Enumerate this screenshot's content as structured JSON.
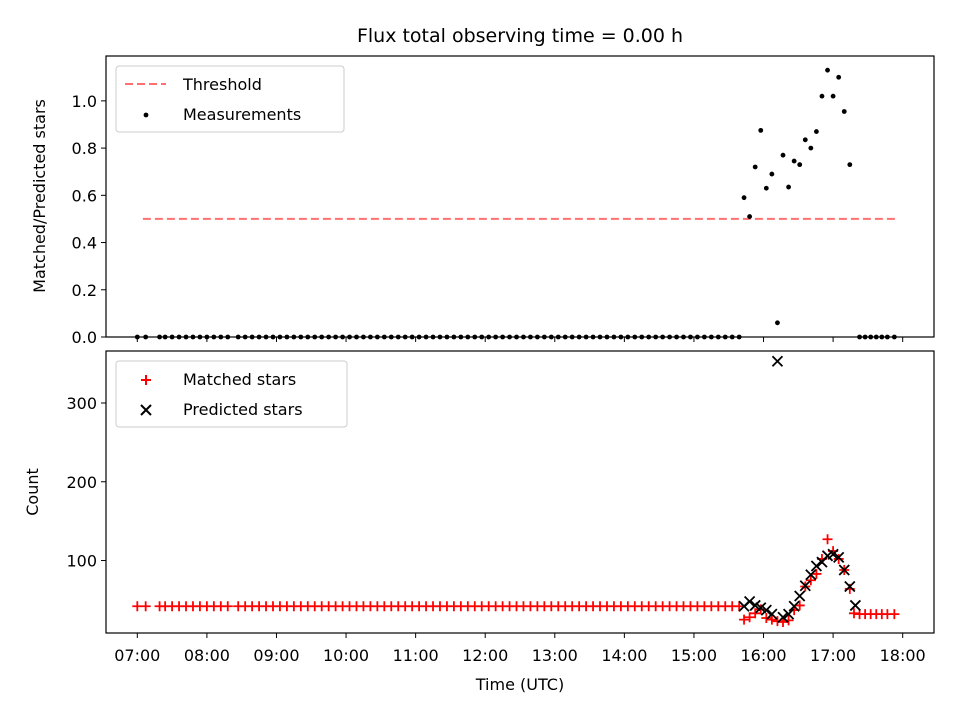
{
  "chart_data": [
    {
      "type": "scatter",
      "title": "Flux total observing time = 0.00 h",
      "xlabel": "",
      "ylabel": "Matched/Predicted stars",
      "xlim": [
        6.55,
        18.45
      ],
      "ylim": [
        0,
        1.19
      ],
      "yticks": [
        0.0,
        0.2,
        0.4,
        0.6,
        0.8,
        1.0
      ],
      "ytick_labels": [
        "0.0",
        "0.2",
        "0.4",
        "0.6",
        "0.8",
        "1.0"
      ],
      "legend_position": "top-left",
      "grid": false,
      "threshold": {
        "name": "Threshold",
        "value": 0.5,
        "x_range": [
          7.08,
          17.9
        ],
        "color": "#ff7070",
        "style": "dashed"
      },
      "series": [
        {
          "name": "Measurements",
          "color": "#000000",
          "marker": "dot",
          "points": [
            [
              7.0,
              0
            ],
            [
              7.12,
              0
            ],
            [
              7.32,
              0
            ],
            [
              7.4,
              0
            ],
            [
              7.5,
              0
            ],
            [
              7.6,
              0
            ],
            [
              7.7,
              0
            ],
            [
              7.8,
              0
            ],
            [
              7.9,
              0
            ],
            [
              8.0,
              0
            ],
            [
              8.1,
              0
            ],
            [
              8.2,
              0
            ],
            [
              8.3,
              0
            ],
            [
              8.45,
              0
            ],
            [
              8.55,
              0
            ],
            [
              8.65,
              0
            ],
            [
              8.75,
              0
            ],
            [
              8.85,
              0
            ],
            [
              8.95,
              0
            ],
            [
              9.05,
              0
            ],
            [
              9.15,
              0
            ],
            [
              9.25,
              0
            ],
            [
              9.35,
              0
            ],
            [
              9.45,
              0
            ],
            [
              9.55,
              0
            ],
            [
              9.65,
              0
            ],
            [
              9.75,
              0
            ],
            [
              9.85,
              0
            ],
            [
              9.95,
              0
            ],
            [
              10.05,
              0
            ],
            [
              10.15,
              0
            ],
            [
              10.25,
              0
            ],
            [
              10.35,
              0
            ],
            [
              10.45,
              0
            ],
            [
              10.55,
              0
            ],
            [
              10.65,
              0
            ],
            [
              10.75,
              0
            ],
            [
              10.85,
              0
            ],
            [
              10.95,
              0
            ],
            [
              11.05,
              0
            ],
            [
              11.15,
              0
            ],
            [
              11.25,
              0
            ],
            [
              11.35,
              0
            ],
            [
              11.45,
              0
            ],
            [
              11.55,
              0
            ],
            [
              11.65,
              0
            ],
            [
              11.75,
              0
            ],
            [
              11.85,
              0
            ],
            [
              11.95,
              0
            ],
            [
              12.05,
              0
            ],
            [
              12.15,
              0
            ],
            [
              12.25,
              0
            ],
            [
              12.35,
              0
            ],
            [
              12.45,
              0
            ],
            [
              12.55,
              0
            ],
            [
              12.65,
              0
            ],
            [
              12.75,
              0
            ],
            [
              12.85,
              0
            ],
            [
              12.95,
              0
            ],
            [
              13.05,
              0
            ],
            [
              13.15,
              0
            ],
            [
              13.25,
              0
            ],
            [
              13.35,
              0
            ],
            [
              13.45,
              0
            ],
            [
              13.55,
              0
            ],
            [
              13.65,
              0
            ],
            [
              13.75,
              0
            ],
            [
              13.85,
              0
            ],
            [
              13.95,
              0
            ],
            [
              14.05,
              0
            ],
            [
              14.15,
              0
            ],
            [
              14.25,
              0
            ],
            [
              14.35,
              0
            ],
            [
              14.45,
              0
            ],
            [
              14.55,
              0
            ],
            [
              14.65,
              0
            ],
            [
              14.75,
              0
            ],
            [
              14.85,
              0
            ],
            [
              14.95,
              0
            ],
            [
              15.05,
              0
            ],
            [
              15.15,
              0
            ],
            [
              15.25,
              0
            ],
            [
              15.35,
              0
            ],
            [
              15.45,
              0
            ],
            [
              15.55,
              0
            ],
            [
              15.65,
              0
            ],
            [
              15.72,
              0.59
            ],
            [
              15.8,
              0.51
            ],
            [
              15.88,
              0.72
            ],
            [
              15.96,
              0.875
            ],
            [
              16.04,
              0.63
            ],
            [
              16.12,
              0.69
            ],
            [
              16.2,
              0.06
            ],
            [
              16.28,
              0.77
            ],
            [
              16.36,
              0.635
            ],
            [
              16.44,
              0.745
            ],
            [
              16.52,
              0.73
            ],
            [
              16.6,
              0.835
            ],
            [
              16.68,
              0.8
            ],
            [
              16.76,
              0.87
            ],
            [
              16.84,
              1.02
            ],
            [
              16.92,
              1.13
            ],
            [
              17.0,
              1.02
            ],
            [
              17.08,
              1.1
            ],
            [
              17.16,
              0.955
            ],
            [
              17.24,
              0.73
            ],
            [
              17.38,
              0
            ],
            [
              17.46,
              0
            ],
            [
              17.54,
              0
            ],
            [
              17.62,
              0
            ],
            [
              17.7,
              0
            ],
            [
              17.78,
              0
            ],
            [
              17.88,
              0
            ]
          ]
        }
      ]
    },
    {
      "type": "scatter",
      "title": "",
      "xlabel": "Time (UTC)",
      "ylabel": "Count",
      "xlim": [
        6.55,
        18.45
      ],
      "ylim": [
        8,
        366
      ],
      "yticks": [
        100,
        200,
        300
      ],
      "ytick_labels": [
        "100",
        "200",
        "300"
      ],
      "xticks": [
        7,
        8,
        9,
        10,
        11,
        12,
        13,
        14,
        15,
        16,
        17,
        18
      ],
      "xtick_labels": [
        "07:00",
        "08:00",
        "09:00",
        "10:00",
        "11:00",
        "12:00",
        "13:00",
        "14:00",
        "15:00",
        "16:00",
        "17:00",
        "18:00"
      ],
      "legend_position": "top-left",
      "grid": false,
      "series": [
        {
          "name": "Matched stars",
          "color": "#ff0000",
          "marker": "plus",
          "points": [
            [
              7.0,
              42
            ],
            [
              7.12,
              42
            ],
            [
              7.32,
              42
            ],
            [
              7.4,
              42
            ],
            [
              7.5,
              42
            ],
            [
              7.6,
              42
            ],
            [
              7.7,
              42
            ],
            [
              7.8,
              42
            ],
            [
              7.9,
              42
            ],
            [
              8.0,
              42
            ],
            [
              8.1,
              42
            ],
            [
              8.2,
              42
            ],
            [
              8.3,
              42
            ],
            [
              8.45,
              42
            ],
            [
              8.55,
              42
            ],
            [
              8.65,
              42
            ],
            [
              8.75,
              42
            ],
            [
              8.85,
              42
            ],
            [
              8.95,
              42
            ],
            [
              9.05,
              42
            ],
            [
              9.15,
              42
            ],
            [
              9.25,
              42
            ],
            [
              9.35,
              42
            ],
            [
              9.45,
              42
            ],
            [
              9.55,
              42
            ],
            [
              9.65,
              42
            ],
            [
              9.75,
              42
            ],
            [
              9.85,
              42
            ],
            [
              9.95,
              42
            ],
            [
              10.05,
              42
            ],
            [
              10.15,
              42
            ],
            [
              10.25,
              42
            ],
            [
              10.35,
              42
            ],
            [
              10.45,
              42
            ],
            [
              10.55,
              42
            ],
            [
              10.65,
              42
            ],
            [
              10.75,
              42
            ],
            [
              10.85,
              42
            ],
            [
              10.95,
              42
            ],
            [
              11.05,
              42
            ],
            [
              11.15,
              42
            ],
            [
              11.25,
              42
            ],
            [
              11.35,
              42
            ],
            [
              11.45,
              42
            ],
            [
              11.55,
              42
            ],
            [
              11.65,
              42
            ],
            [
              11.75,
              42
            ],
            [
              11.85,
              42
            ],
            [
              11.95,
              42
            ],
            [
              12.05,
              42
            ],
            [
              12.15,
              42
            ],
            [
              12.25,
              42
            ],
            [
              12.35,
              42
            ],
            [
              12.45,
              42
            ],
            [
              12.55,
              42
            ],
            [
              12.65,
              42
            ],
            [
              12.75,
              42
            ],
            [
              12.85,
              42
            ],
            [
              12.95,
              42
            ],
            [
              13.05,
              42
            ],
            [
              13.15,
              42
            ],
            [
              13.25,
              42
            ],
            [
              13.35,
              42
            ],
            [
              13.45,
              42
            ],
            [
              13.55,
              42
            ],
            [
              13.65,
              42
            ],
            [
              13.75,
              42
            ],
            [
              13.85,
              42
            ],
            [
              13.95,
              42
            ],
            [
              14.05,
              42
            ],
            [
              14.15,
              42
            ],
            [
              14.25,
              42
            ],
            [
              14.35,
              42
            ],
            [
              14.45,
              42
            ],
            [
              14.55,
              42
            ],
            [
              14.65,
              42
            ],
            [
              14.75,
              42
            ],
            [
              14.85,
              42
            ],
            [
              14.95,
              42
            ],
            [
              15.05,
              42
            ],
            [
              15.15,
              42
            ],
            [
              15.25,
              42
            ],
            [
              15.35,
              42
            ],
            [
              15.45,
              42
            ],
            [
              15.55,
              42
            ],
            [
              15.65,
              42
            ],
            [
              15.72,
              25
            ],
            [
              15.8,
              28
            ],
            [
              15.88,
              33
            ],
            [
              15.96,
              38
            ],
            [
              16.04,
              27
            ],
            [
              16.12,
              25
            ],
            [
              16.2,
              23
            ],
            [
              16.28,
              22
            ],
            [
              16.36,
              24
            ],
            [
              16.44,
              37
            ],
            [
              16.52,
              43
            ],
            [
              16.6,
              67
            ],
            [
              16.68,
              75
            ],
            [
              16.76,
              83
            ],
            [
              16.84,
              102
            ],
            [
              16.92,
              127
            ],
            [
              17.0,
              112
            ],
            [
              17.08,
              102
            ],
            [
              17.16,
              88
            ],
            [
              17.24,
              64
            ],
            [
              17.3,
              33
            ],
            [
              17.38,
              32
            ],
            [
              17.46,
              32
            ],
            [
              17.54,
              32
            ],
            [
              17.62,
              32
            ],
            [
              17.7,
              32
            ],
            [
              17.78,
              32
            ],
            [
              17.88,
              32
            ]
          ]
        },
        {
          "name": "Predicted stars",
          "color": "#000000",
          "marker": "x",
          "points": [
            [
              15.72,
              42
            ],
            [
              15.8,
              48
            ],
            [
              15.88,
              43
            ],
            [
              15.96,
              40
            ],
            [
              16.04,
              37
            ],
            [
              16.12,
              32
            ],
            [
              16.2,
              353
            ],
            [
              16.28,
              28
            ],
            [
              16.36,
              32
            ],
            [
              16.44,
              42
            ],
            [
              16.52,
              55
            ],
            [
              16.6,
              68
            ],
            [
              16.68,
              82
            ],
            [
              16.76,
              93
            ],
            [
              16.84,
              98
            ],
            [
              16.92,
              106
            ],
            [
              17.0,
              108
            ],
            [
              17.08,
              104
            ],
            [
              17.16,
              88
            ],
            [
              17.24,
              67
            ],
            [
              17.32,
              43
            ]
          ]
        }
      ]
    }
  ]
}
